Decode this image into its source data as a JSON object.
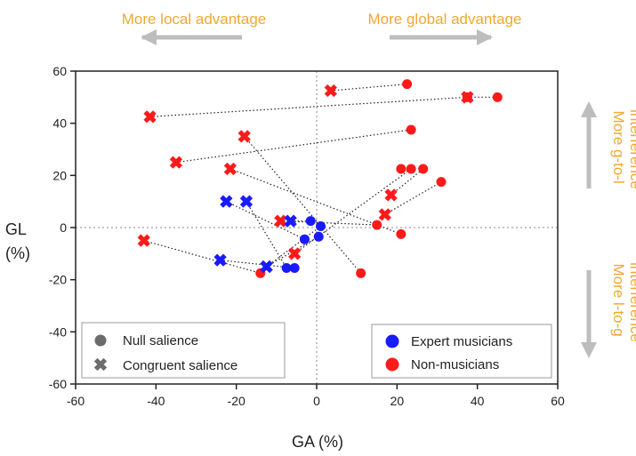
{
  "annotations": {
    "top_left": "More local advantage",
    "top_right": "More global advantage",
    "right_top": [
      "More g-to-l",
      "interference"
    ],
    "right_bottom": [
      "More l-to-g",
      "interference"
    ]
  },
  "colors": {
    "expert": "#1a1aff",
    "non": "#ff1a1a",
    "annotation": "#f0a830",
    "arrow": "#bdbdbd"
  },
  "legend_shape": {
    "null": "Null salience",
    "congruent": "Congruent salience"
  },
  "legend_group": {
    "expert": "Expert musicians",
    "non": "Non-musicians"
  },
  "chart_data": {
    "type": "scatter",
    "xlabel": "GA (%)",
    "ylabel": [
      "GL",
      "(%)"
    ],
    "xlim": [
      -60,
      60
    ],
    "ylim": [
      -60,
      60
    ],
    "xticks": [
      -60,
      -40,
      -20,
      0,
      20,
      40,
      60
    ],
    "yticks": [
      -60,
      -40,
      -20,
      0,
      20,
      40,
      60
    ],
    "reference_lines": {
      "x": 0,
      "y": 0
    },
    "pairs": [
      {
        "group": "non",
        "congruent": [
          3.5,
          52.5
        ],
        "null": [
          22.5,
          55
        ]
      },
      {
        "group": "non",
        "congruent": [
          37.5,
          50
        ],
        "null": [
          45,
          50
        ]
      },
      {
        "group": "non",
        "congruent": [
          -41.5,
          42.5
        ],
        "null": [
          37.5,
          50
        ]
      },
      {
        "group": "non",
        "congruent": [
          -35,
          25
        ],
        "null": [
          23.5,
          37.5
        ]
      },
      {
        "group": "non",
        "congruent": [
          -18,
          35
        ],
        "null": [
          11,
          -17.5
        ]
      },
      {
        "group": "non",
        "congruent": [
          -21.5,
          22.5
        ],
        "null": [
          21,
          -2.5
        ]
      },
      {
        "group": "non",
        "congruent": [
          18.5,
          12.5
        ],
        "null": [
          26.5,
          22.5
        ]
      },
      {
        "group": "non",
        "congruent": [
          17,
          5
        ],
        "null": [
          31,
          17.5
        ]
      },
      {
        "group": "non",
        "congruent": [
          -9,
          2.5
        ],
        "null": [
          15,
          1
        ]
      },
      {
        "group": "non",
        "congruent": [
          -5.5,
          -10
        ],
        "null": [
          23.5,
          22.5
        ]
      },
      {
        "group": "non",
        "congruent": [
          -43,
          -5
        ],
        "null": [
          -14,
          -17.5
        ]
      },
      {
        "group": "expert",
        "congruent": [
          -22.5,
          10
        ],
        "null": [
          -3,
          -4.5
        ]
      },
      {
        "group": "expert",
        "congruent": [
          -17.5,
          10
        ],
        "null": [
          -7.5,
          -15.5
        ]
      },
      {
        "group": "expert",
        "congruent": [
          -6.5,
          2.5
        ],
        "null": [
          -1.5,
          2.5
        ]
      },
      {
        "group": "expert",
        "congruent": [
          -24,
          -12.5
        ],
        "null": [
          -5.5,
          -15.5
        ]
      },
      {
        "group": "expert",
        "congruent": [
          -12.5,
          -15
        ],
        "null": [
          0.5,
          -3.5
        ]
      },
      {
        "group": "expert",
        "congruent": [
          -12.5,
          -15
        ],
        "null": [
          1,
          0.5
        ]
      }
    ],
    "extra_null_points": [
      {
        "group": "non",
        "point": [
          21,
          22.5
        ]
      }
    ]
  }
}
